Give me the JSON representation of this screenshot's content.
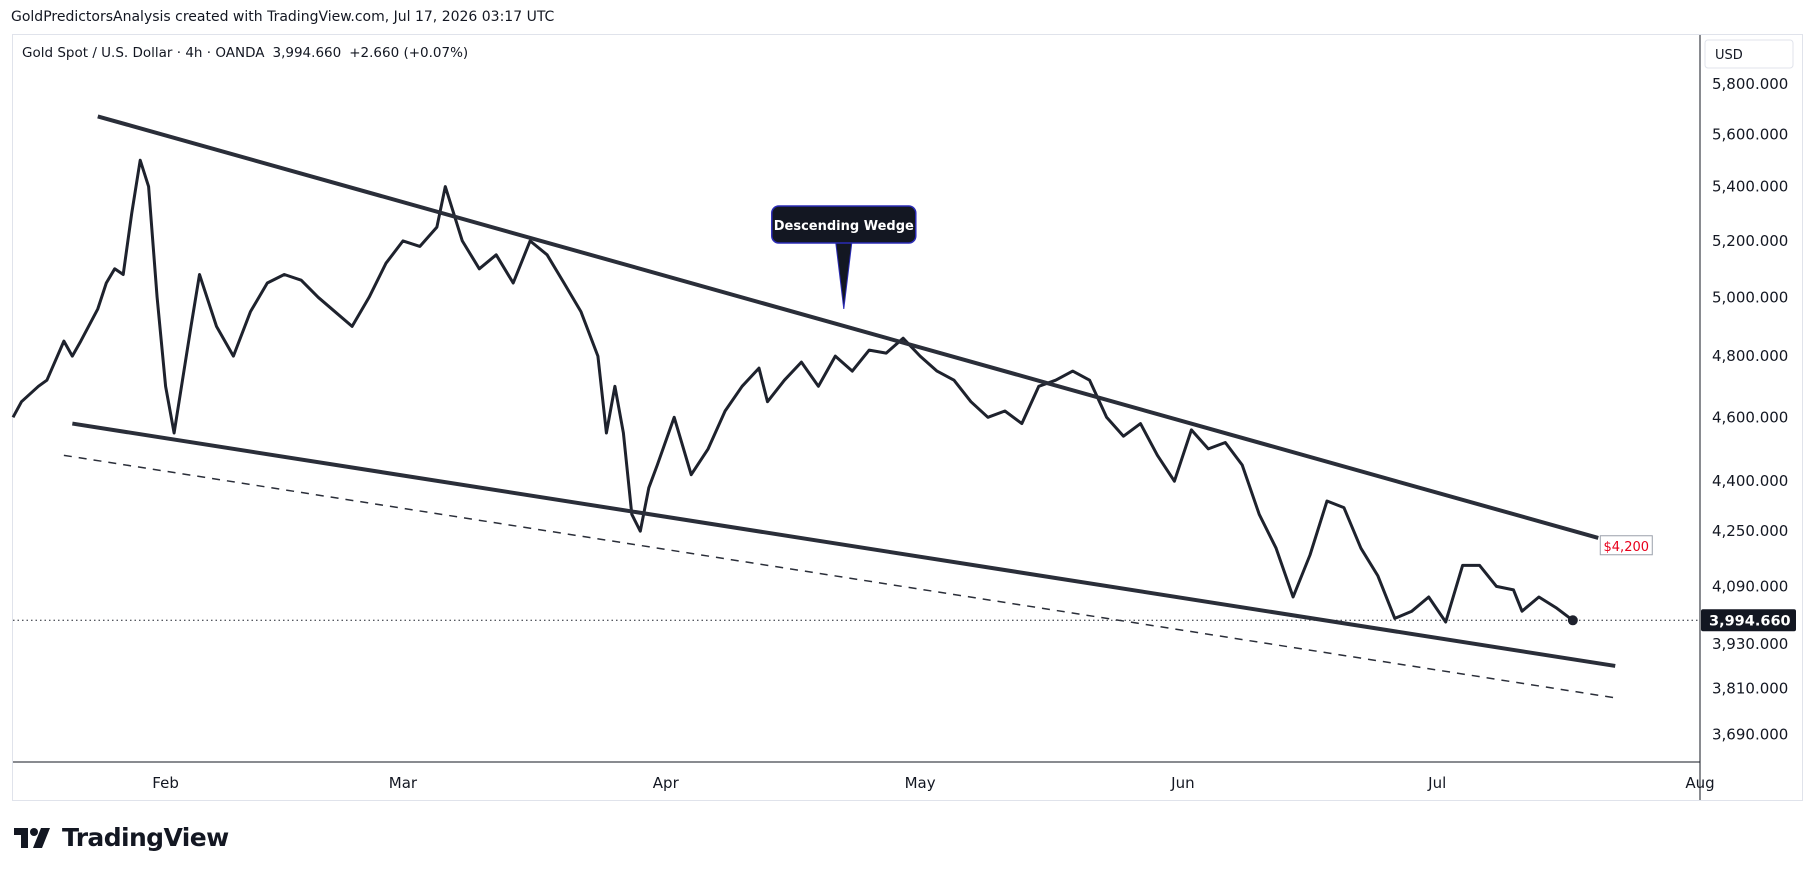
{
  "header": {
    "attribution": "GoldPredictorsAnalysis created with TradingView.com, Jul 17, 2026 03:17 UTC"
  },
  "symbol_bar": {
    "name": "Gold Spot / U.S. Dollar",
    "interval": "4h",
    "source": "OANDA",
    "price": "3,994.660",
    "change": "+2.660 (+0.07%)"
  },
  "price_scale": {
    "currency": "USD",
    "last_price_label": "3,994.660"
  },
  "annotations": {
    "wedge_callout": "Descending Wedge",
    "target_label": "$4,200"
  },
  "footer": {
    "brand": "TradingView"
  },
  "colors": {
    "line": "#1e222d",
    "trendline": "#2a2e39",
    "target": "#e8001c",
    "axis_text": "#131722",
    "grid_border": "#e0e3eb",
    "price_badge": "#131722"
  },
  "chart_data": {
    "type": "line",
    "title": "Gold Spot / U.S. Dollar · 4h · OANDA",
    "scale": "log",
    "x_range": [
      "2026-01-14",
      "2026-08-01"
    ],
    "y_range": [
      3620,
      6000
    ],
    "x_ticks": [
      {
        "date": "2026-02-01",
        "label": "Feb"
      },
      {
        "date": "2026-03-01",
        "label": "Mar"
      },
      {
        "date": "2026-04-01",
        "label": "Apr"
      },
      {
        "date": "2026-05-01",
        "label": "May"
      },
      {
        "date": "2026-06-01",
        "label": "Jun"
      },
      {
        "date": "2026-07-01",
        "label": "Jul"
      },
      {
        "date": "2026-08-01",
        "label": "Aug"
      }
    ],
    "y_ticks": [
      {
        "value": 5800,
        "label": "5,800.000"
      },
      {
        "value": 5600,
        "label": "5,600.000"
      },
      {
        "value": 5400,
        "label": "5,400.000"
      },
      {
        "value": 5200,
        "label": "5,200.000"
      },
      {
        "value": 5000,
        "label": "5,000.000"
      },
      {
        "value": 4800,
        "label": "4,800.000"
      },
      {
        "value": 4600,
        "label": "4,600.000"
      },
      {
        "value": 4400,
        "label": "4,400.000"
      },
      {
        "value": 4250,
        "label": "4,250.000"
      },
      {
        "value": 4090,
        "label": "4,090.000"
      },
      {
        "value": 3930,
        "label": "3,930.000"
      },
      {
        "value": 3810,
        "label": "3,810.000"
      },
      {
        "value": 3690,
        "label": "3,690.000"
      }
    ],
    "last_price": 3994.66,
    "series": [
      {
        "points": [
          [
            "2026-01-14",
            4600
          ],
          [
            "2026-01-15",
            4650
          ],
          [
            "2026-01-17",
            4700
          ],
          [
            "2026-01-18",
            4720
          ],
          [
            "2026-01-20",
            4850
          ],
          [
            "2026-01-21",
            4800
          ],
          [
            "2026-01-22",
            4850
          ],
          [
            "2026-01-24",
            4960
          ],
          [
            "2026-01-25",
            5050
          ],
          [
            "2026-01-26",
            5100
          ],
          [
            "2026-01-27",
            5080
          ],
          [
            "2026-01-28",
            5300
          ],
          [
            "2026-01-29",
            5500
          ],
          [
            "2026-01-30",
            5400
          ],
          [
            "2026-01-31",
            5000
          ],
          [
            "2026-02-01",
            4700
          ],
          [
            "2026-02-02",
            4550
          ],
          [
            "2026-02-04",
            4900
          ],
          [
            "2026-02-05",
            5080
          ],
          [
            "2026-02-07",
            4900
          ],
          [
            "2026-02-09",
            4800
          ],
          [
            "2026-02-11",
            4950
          ],
          [
            "2026-02-13",
            5050
          ],
          [
            "2026-02-15",
            5080
          ],
          [
            "2026-02-17",
            5060
          ],
          [
            "2026-02-19",
            5000
          ],
          [
            "2026-02-21",
            4950
          ],
          [
            "2026-02-23",
            4900
          ],
          [
            "2026-02-25",
            5000
          ],
          [
            "2026-02-27",
            5120
          ],
          [
            "2026-03-01",
            5200
          ],
          [
            "2026-03-03",
            5180
          ],
          [
            "2026-03-05",
            5250
          ],
          [
            "2026-03-06",
            5400
          ],
          [
            "2026-03-08",
            5200
          ],
          [
            "2026-03-10",
            5100
          ],
          [
            "2026-03-12",
            5150
          ],
          [
            "2026-03-14",
            5050
          ],
          [
            "2026-03-16",
            5200
          ],
          [
            "2026-03-18",
            5150
          ],
          [
            "2026-03-20",
            5050
          ],
          [
            "2026-03-22",
            4950
          ],
          [
            "2026-03-24",
            4800
          ],
          [
            "2026-03-25",
            4550
          ],
          [
            "2026-03-26",
            4700
          ],
          [
            "2026-03-27",
            4550
          ],
          [
            "2026-03-28",
            4300
          ],
          [
            "2026-03-29",
            4250
          ],
          [
            "2026-03-30",
            4380
          ],
          [
            "2026-03-31",
            4450
          ],
          [
            "2026-04-02",
            4600
          ],
          [
            "2026-04-04",
            4420
          ],
          [
            "2026-04-06",
            4500
          ],
          [
            "2026-04-08",
            4620
          ],
          [
            "2026-04-10",
            4700
          ],
          [
            "2026-04-12",
            4760
          ],
          [
            "2026-04-13",
            4650
          ],
          [
            "2026-04-15",
            4720
          ],
          [
            "2026-04-17",
            4780
          ],
          [
            "2026-04-19",
            4700
          ],
          [
            "2026-04-21",
            4800
          ],
          [
            "2026-04-23",
            4750
          ],
          [
            "2026-04-25",
            4820
          ],
          [
            "2026-04-27",
            4810
          ],
          [
            "2026-04-29",
            4860
          ],
          [
            "2026-05-01",
            4800
          ],
          [
            "2026-05-03",
            4750
          ],
          [
            "2026-05-05",
            4720
          ],
          [
            "2026-05-07",
            4650
          ],
          [
            "2026-05-09",
            4600
          ],
          [
            "2026-05-11",
            4620
          ],
          [
            "2026-05-13",
            4580
          ],
          [
            "2026-05-15",
            4700
          ],
          [
            "2026-05-17",
            4720
          ],
          [
            "2026-05-19",
            4750
          ],
          [
            "2026-05-21",
            4720
          ],
          [
            "2026-05-23",
            4600
          ],
          [
            "2026-05-25",
            4540
          ],
          [
            "2026-05-27",
            4580
          ],
          [
            "2026-05-29",
            4480
          ],
          [
            "2026-05-31",
            4400
          ],
          [
            "2026-06-02",
            4560
          ],
          [
            "2026-06-04",
            4500
          ],
          [
            "2026-06-06",
            4520
          ],
          [
            "2026-06-08",
            4450
          ],
          [
            "2026-06-10",
            4300
          ],
          [
            "2026-06-12",
            4200
          ],
          [
            "2026-06-14",
            4060
          ],
          [
            "2026-06-16",
            4180
          ],
          [
            "2026-06-18",
            4340
          ],
          [
            "2026-06-20",
            4320
          ],
          [
            "2026-06-22",
            4200
          ],
          [
            "2026-06-24",
            4120
          ],
          [
            "2026-06-26",
            4000
          ],
          [
            "2026-06-28",
            4020
          ],
          [
            "2026-06-30",
            4060
          ],
          [
            "2026-07-02",
            3990
          ],
          [
            "2026-07-04",
            4150
          ],
          [
            "2026-07-06",
            4150
          ],
          [
            "2026-07-08",
            4090
          ],
          [
            "2026-07-10",
            4080
          ],
          [
            "2026-07-11",
            4020
          ],
          [
            "2026-07-13",
            4060
          ],
          [
            "2026-07-15",
            4030
          ],
          [
            "2026-07-17",
            3994.66
          ]
        ]
      }
    ],
    "trendlines": [
      {
        "name": "upper",
        "style": "solid",
        "from": [
          "2026-01-24",
          5670
        ],
        "to": [
          "2026-07-20",
          4230
        ]
      },
      {
        "name": "lower",
        "style": "solid",
        "from": [
          "2026-01-21",
          4580
        ],
        "to": [
          "2026-07-22",
          3870
        ]
      },
      {
        "name": "lower-parallel",
        "style": "dashed",
        "from": [
          "2026-01-20",
          4480
        ],
        "to": [
          "2026-07-22",
          3785
        ]
      }
    ],
    "annotations": [
      {
        "text": "Descending Wedge",
        "anchor": [
          "2026-04-22",
          4960
        ]
      },
      {
        "text": "$4,200",
        "anchor": [
          "2026-07-20",
          4210
        ]
      }
    ]
  }
}
